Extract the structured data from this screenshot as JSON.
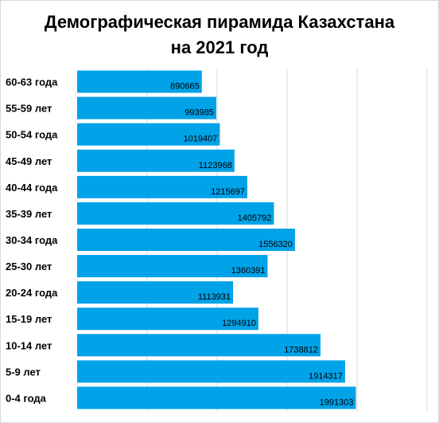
{
  "chart_data": {
    "type": "bar",
    "orientation": "horizontal",
    "title_line1": "Демографическая пирамида Казахстана",
    "title_line2": "на 2021 год",
    "categories": [
      "60-63 года",
      "55-59 лет",
      "50-54 года",
      "45-49 лет",
      "40-44 года",
      "35-39 лет",
      "30-34 года",
      "25-30 лет",
      "20-24 года",
      "15-19 лет",
      "10-14 лет",
      "5-9 лет",
      "0-4 года"
    ],
    "values": [
      890665,
      993985,
      1019407,
      1123968,
      1215697,
      1405792,
      1556320,
      1360391,
      1113931,
      1294910,
      1738812,
      1914317,
      1991303
    ],
    "xlim": [
      0,
      2500000
    ],
    "grid": true,
    "bar_color": "#00a2e8",
    "grid_color": "#d9d9d9",
    "data_labels": "inside-end"
  }
}
